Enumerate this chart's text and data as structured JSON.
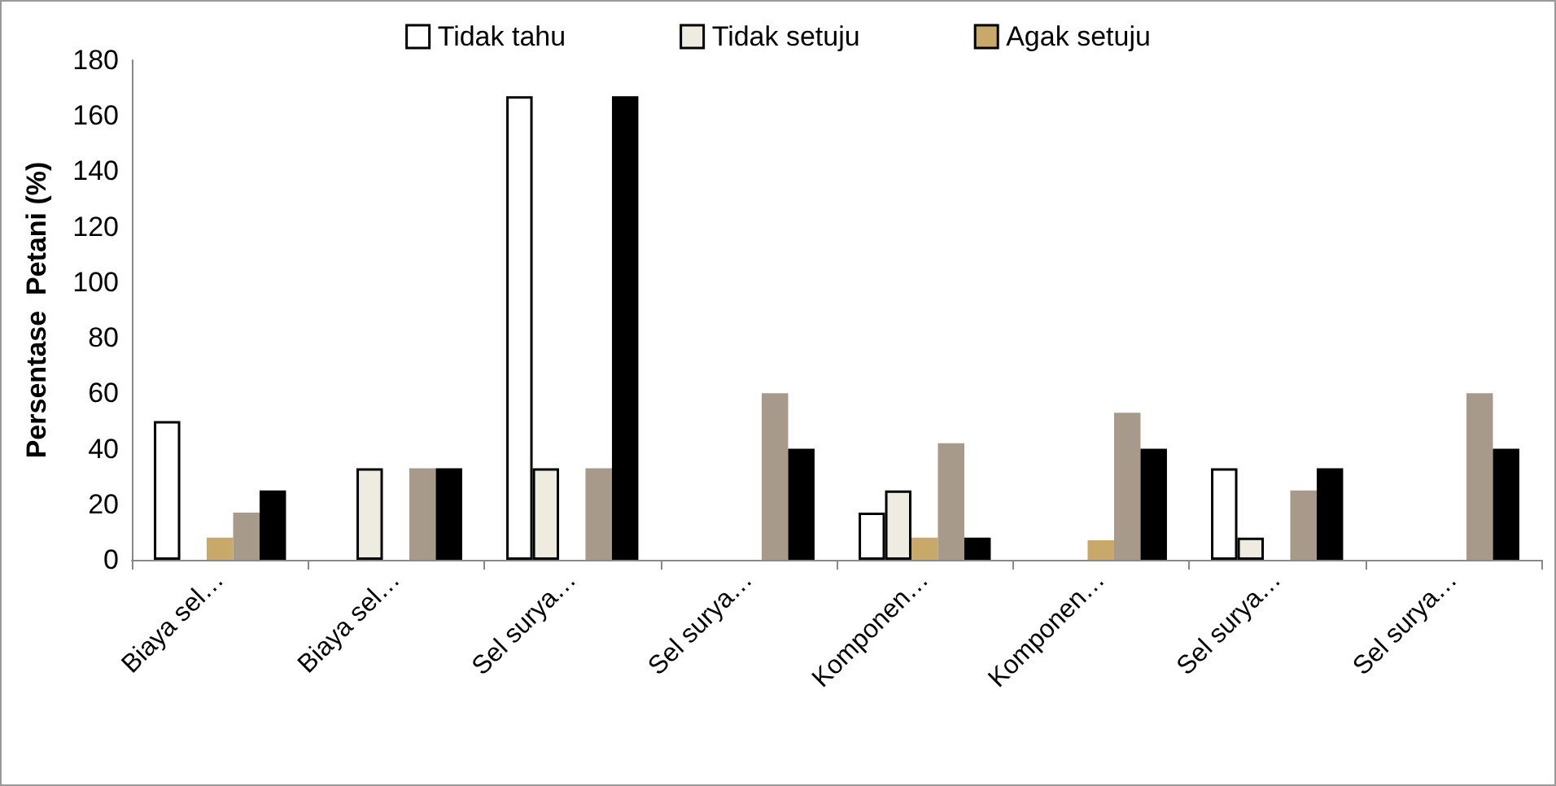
{
  "chart_data": {
    "type": "bar",
    "ylabel": "Persentase  Petani (%)",
    "categories": [
      "Biaya sel…",
      "Biaya sel…",
      "Sel surya…",
      "Sel surya…",
      "Komponen…",
      "Komponen…",
      "Sel surya…",
      "Sel surya…"
    ],
    "series": [
      {
        "name": "Tidak tahu",
        "color": "#ffffff",
        "values": [
          50,
          0,
          167,
          0,
          17,
          0,
          33,
          0
        ]
      },
      {
        "name": "Tidak setuju",
        "color": "#eeebe0",
        "values": [
          0,
          33,
          33,
          0,
          25,
          0,
          8,
          0
        ]
      },
      {
        "name": "Agak setuju",
        "color": "#c8a96a",
        "values": [
          8,
          0,
          0,
          0,
          8,
          7,
          0,
          0
        ]
      },
      {
        "color": "#a89a8a",
        "values": [
          17,
          33,
          33,
          60,
          42,
          53,
          25,
          60
        ]
      },
      {
        "color": "#000000",
        "values": [
          25,
          33,
          167,
          40,
          8,
          40,
          33,
          40
        ]
      }
    ],
    "ylim": [
      0,
      180
    ],
    "yticks": [
      0,
      20,
      40,
      60,
      80,
      100,
      120,
      140,
      160,
      180
    ],
    "grid": false,
    "legend": "top"
  }
}
